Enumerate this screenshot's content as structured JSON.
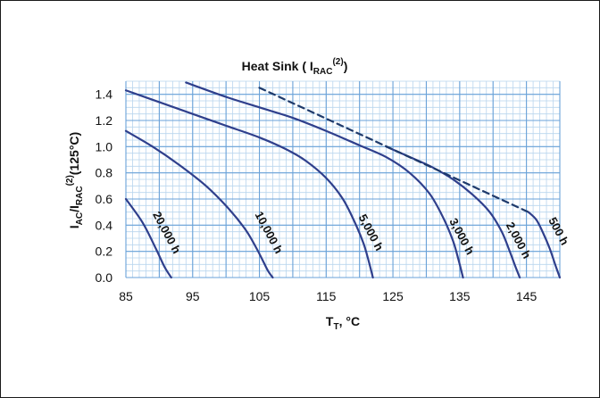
{
  "chart_data": {
    "type": "line",
    "title": {
      "main": "Heat Sink ( I",
      "sub": "RAC",
      "sup": "(2)",
      "close": ")"
    },
    "xlabel": {
      "main": "T",
      "sub": "T",
      "rest": ", °C"
    },
    "ylabel": {
      "a": "I",
      "a_sub": "AC",
      "b": "/I",
      "b_sub": "RAC",
      "b_sup": "(2)",
      "c": "(125°C)"
    },
    "xlim": [
      85,
      150
    ],
    "ylim": [
      0,
      1.5
    ],
    "x_ticks": [
      "85",
      "95",
      "105",
      "115",
      "125",
      "135",
      "145"
    ],
    "y_ticks": [
      "0.0",
      "0.2",
      "0.4",
      "0.6",
      "0.8",
      "1.0",
      "1.2",
      "1.4"
    ],
    "grid": true,
    "minor_grid": true,
    "colors": {
      "curve": "#2f3f8c",
      "grid_major": "#6aa2d8",
      "grid_minor": "#b9d5ee",
      "dashed": "#1f3a6b"
    },
    "series": [
      {
        "name": "20,000 h",
        "x": [
          85,
          87.5,
          89.5,
          90.8,
          91.8
        ],
        "y": [
          0.6,
          0.42,
          0.22,
          0.08,
          0.0
        ]
      },
      {
        "name": "10,000 h",
        "x": [
          85,
          89,
          93,
          97,
          100.5,
          103,
          104.6,
          105.6,
          106.3,
          107
        ],
        "y": [
          1.12,
          1.0,
          0.86,
          0.7,
          0.52,
          0.36,
          0.22,
          0.12,
          0.05,
          0.0
        ]
      },
      {
        "name": "5,000 h",
        "x": [
          85,
          90,
          95,
          100,
          105,
          109,
          112,
          115,
          117.5,
          119.3,
          120.6,
          121.4,
          122
        ],
        "y": [
          1.43,
          1.34,
          1.25,
          1.16,
          1.07,
          0.98,
          0.89,
          0.76,
          0.6,
          0.42,
          0.26,
          0.12,
          0.0
        ]
      },
      {
        "name": "3,000 h",
        "x": [
          94,
          100,
          105,
          110,
          115,
          120,
          124,
          127.5,
          130.5,
          132.6,
          134,
          134.8,
          135.5
        ],
        "y": [
          1.49,
          1.38,
          1.3,
          1.22,
          1.12,
          1.01,
          0.92,
          0.8,
          0.64,
          0.45,
          0.28,
          0.14,
          0.0
        ]
      },
      {
        "name": "2,000 h",
        "x": [
          124,
          128,
          131,
          134,
          137,
          139.5,
          141.3,
          142.5,
          143.3,
          144
        ],
        "y": [
          1.0,
          0.91,
          0.84,
          0.75,
          0.63,
          0.5,
          0.35,
          0.2,
          0.09,
          0.0
        ]
      },
      {
        "name": "500 h",
        "x": [
          145.3,
          146.5,
          147.5,
          148.5,
          149.3,
          150
        ],
        "y": [
          0.5,
          0.44,
          0.34,
          0.22,
          0.1,
          0.0
        ]
      },
      {
        "name": "",
        "style": "dashed",
        "x": [
          105,
          145.3
        ],
        "y": [
          1.45,
          0.5
        ]
      }
    ]
  }
}
